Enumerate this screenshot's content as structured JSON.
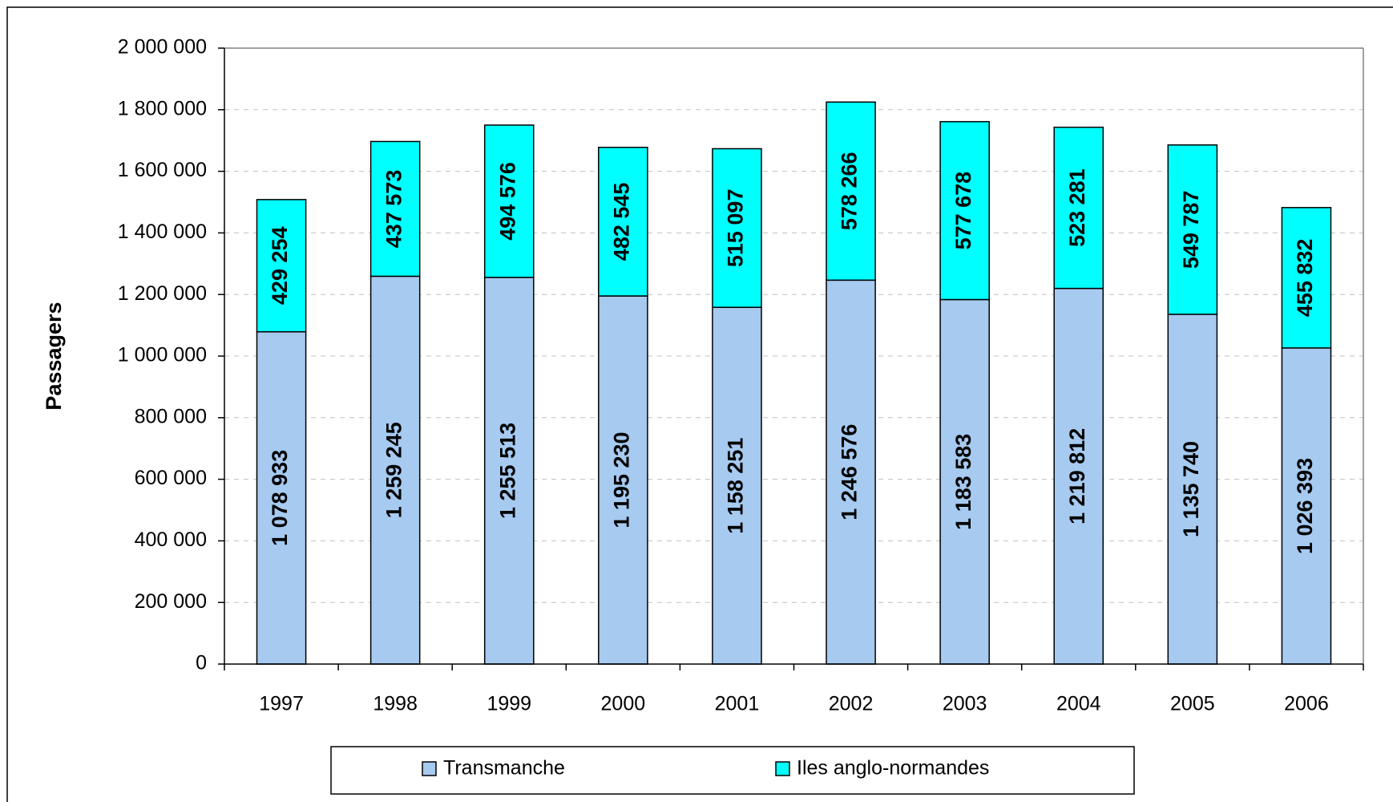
{
  "chart_data": {
    "type": "stacked_bar",
    "y_label": "Passagers",
    "categories": [
      "1997",
      "1998",
      "1999",
      "2000",
      "2001",
      "2002",
      "2003",
      "2004",
      "2005",
      "2006"
    ],
    "series": [
      {
        "name": "Transmanche",
        "color": "#a6caf0",
        "values": [
          1078933,
          1259245,
          1255513,
          1195230,
          1158251,
          1246576,
          1183583,
          1219812,
          1135740,
          1026393
        ],
        "value_labels": [
          "1 078 933",
          "1 259 245",
          "1 255 513",
          "1 195 230",
          "1 158 251",
          "1 246 576",
          "1 183 583",
          "1 219 812",
          "1 135 740",
          "1 026 393"
        ]
      },
      {
        "name": "Iles anglo-normandes",
        "color": "#00ffff",
        "values": [
          429254,
          437573,
          494576,
          482545,
          515097,
          578266,
          577678,
          523281,
          549787,
          455832
        ],
        "value_labels": [
          "429 254",
          "437 573",
          "494 576",
          "482 545",
          "515 097",
          "578 266",
          "577 678",
          "523 281",
          "549 787",
          "455 832"
        ]
      }
    ],
    "ylim": [
      0,
      2000000
    ],
    "yticks": [
      {
        "value": 0,
        "label": "0"
      },
      {
        "value": 200000,
        "label": "200 000"
      },
      {
        "value": 400000,
        "label": "400 000"
      },
      {
        "value": 600000,
        "label": "600 000"
      },
      {
        "value": 800000,
        "label": "800 000"
      },
      {
        "value": 1000000,
        "label": "1 000 000"
      },
      {
        "value": 1200000,
        "label": "1 200 000"
      },
      {
        "value": 1400000,
        "label": "1 400 000"
      },
      {
        "value": 1600000,
        "label": "1 600 000"
      },
      {
        "value": 1800000,
        "label": "1 800 000"
      },
      {
        "value": 2000000,
        "label": "2 000 000"
      }
    ],
    "grid": true,
    "legend": "bottom"
  }
}
